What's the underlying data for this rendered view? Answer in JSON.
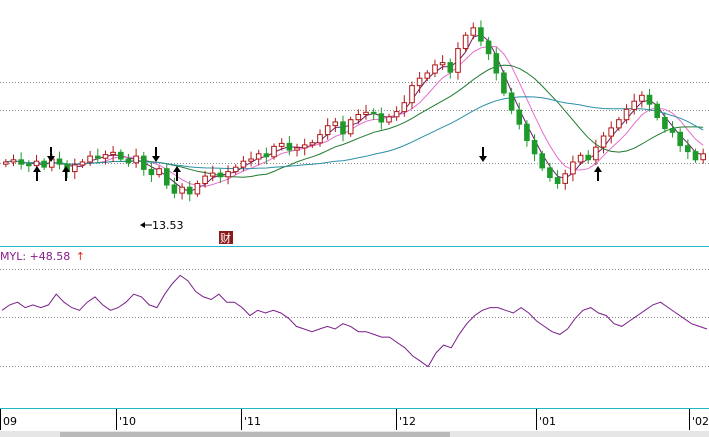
{
  "indicator": {
    "name": "MYL:",
    "value": "+48.58",
    "arrow": "↑"
  },
  "colors": {
    "background": "#ffffff",
    "up_candle": "#b01818",
    "down_candle": "#1e9a2a",
    "panel_separator": "#21b7c9",
    "ma_short": "#6a1f6a",
    "ma_mid": "#e66fd0",
    "ma_long": "#1f7a2e",
    "ma_longest": "#2b8fa8",
    "indicator_line": "#7a1f8a",
    "signal_arrow": "#000000",
    "event_marker_bg": "#8b1a1a"
  },
  "chart_data": [
    {
      "type": "candlestick",
      "x_tick_labels": [
        "09",
        "'10",
        "'11",
        "'12",
        "'01",
        "'02"
      ],
      "annotations": [
        {
          "text": "13.53",
          "kind": "low-price-label"
        },
        {
          "text": "财",
          "kind": "event-marker"
        }
      ],
      "signal_arrows_up": 4,
      "signal_arrows_down": 3,
      "series": [
        {
          "kind": "candles",
          "close_trace": [
            21.5,
            21.8,
            21.2,
            21.0,
            21.6,
            20.8,
            21.9,
            21.2,
            20.2,
            21.1,
            21.5,
            22.3,
            22.0,
            22.5,
            22.8,
            21.9,
            21.4,
            22.3,
            20.5,
            19.8,
            20.6,
            18.4,
            17.3,
            18.1,
            17.2,
            18.6,
            19.6,
            20.0,
            19.5,
            20.2,
            20.8,
            21.6,
            21.9,
            22.6,
            22.2,
            23.6,
            24.0,
            23.1,
            23.4,
            23.8,
            24.1,
            25.2,
            26.4,
            26.9,
            25.3,
            27.2,
            27.9,
            28.2,
            28.0,
            26.9,
            27.6,
            28.3,
            29.5,
            31.8,
            32.8,
            33.5,
            34.6,
            34.9,
            33.6,
            36.8,
            38.6,
            39.6,
            37.8,
            36.1,
            33.5,
            30.8,
            28.5,
            26.6,
            24.4,
            22.6,
            20.7,
            19.4,
            18.6,
            19.9,
            21.5,
            22.4,
            21.8,
            23.5,
            25.0,
            26.1,
            27.2,
            28.6,
            29.7,
            30.5,
            29.3,
            27.5,
            26.0,
            25.5,
            23.7,
            22.9,
            21.8,
            22.6
          ]
        }
      ]
    },
    {
      "type": "line",
      "series": [
        {
          "kind": "indicator",
          "values": [
            44,
            46,
            47,
            45,
            46,
            45,
            46,
            50,
            47,
            45,
            44,
            47,
            49,
            46,
            44,
            45,
            47,
            50,
            49,
            46,
            45,
            50,
            54,
            57,
            55,
            51,
            49,
            48,
            50,
            47,
            47,
            45,
            42,
            44,
            43,
            44,
            43,
            41,
            38,
            37,
            36,
            37,
            38,
            37,
            39,
            38,
            36,
            36,
            35,
            34,
            34,
            32,
            30,
            27,
            25,
            23,
            28,
            31,
            30,
            35,
            39,
            42,
            44,
            45,
            45,
            44,
            43,
            45,
            43,
            40,
            38,
            36,
            35,
            37,
            41,
            44,
            45,
            43,
            42,
            39,
            38,
            40,
            42,
            44,
            46,
            47,
            45,
            43,
            41,
            39,
            38,
            37
          ]
        }
      ]
    }
  ]
}
